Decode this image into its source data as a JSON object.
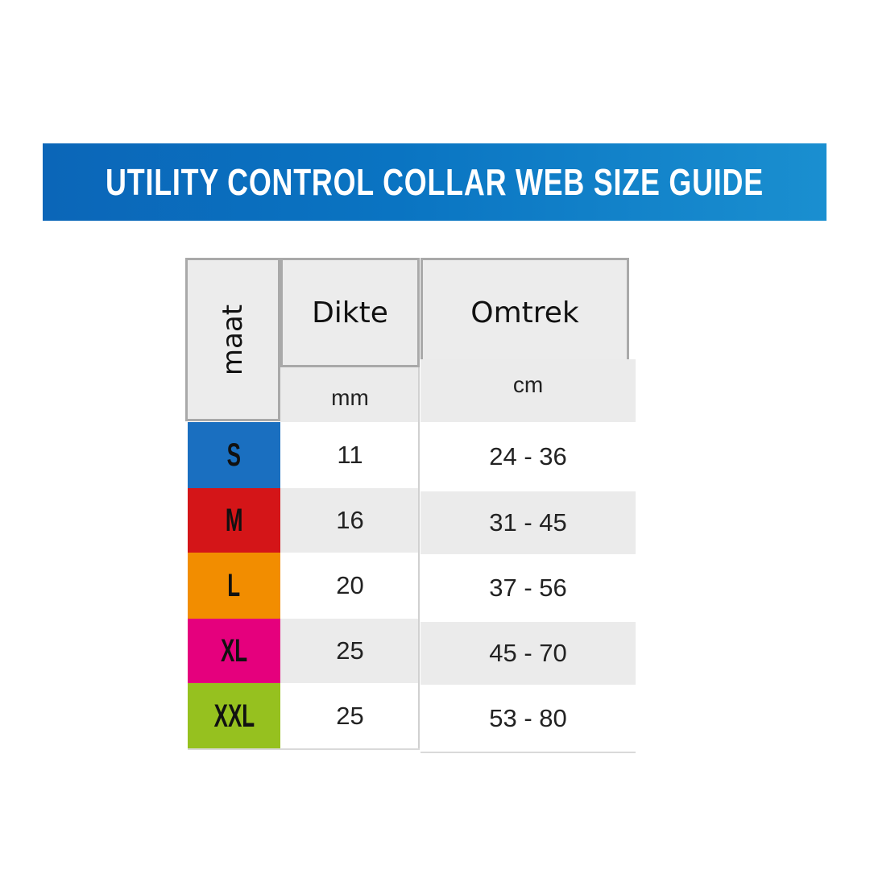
{
  "banner": {
    "title": "UTILITY CONTROL COLLAR WEB SIZE GUIDE"
  },
  "table": {
    "header": {
      "size": "maat",
      "thickness": "Dikte",
      "circumference": "Omtrek"
    },
    "units": {
      "thickness": "mm",
      "circumference": "cm"
    },
    "rows": [
      {
        "size": "S",
        "color": "#1a6fc0",
        "thickness": "11",
        "circumference": "24 - 36"
      },
      {
        "size": "M",
        "color": "#d41518",
        "thickness": "16",
        "circumference": "31 - 45"
      },
      {
        "size": "L",
        "color": "#f28d00",
        "thickness": "20",
        "circumference": "37 - 56"
      },
      {
        "size": "XL",
        "color": "#e5007d",
        "thickness": "25",
        "circumference": "45 - 70"
      },
      {
        "size": "XXL",
        "color": "#96c11f",
        "thickness": "25",
        "circumference": "53 - 80"
      }
    ]
  }
}
